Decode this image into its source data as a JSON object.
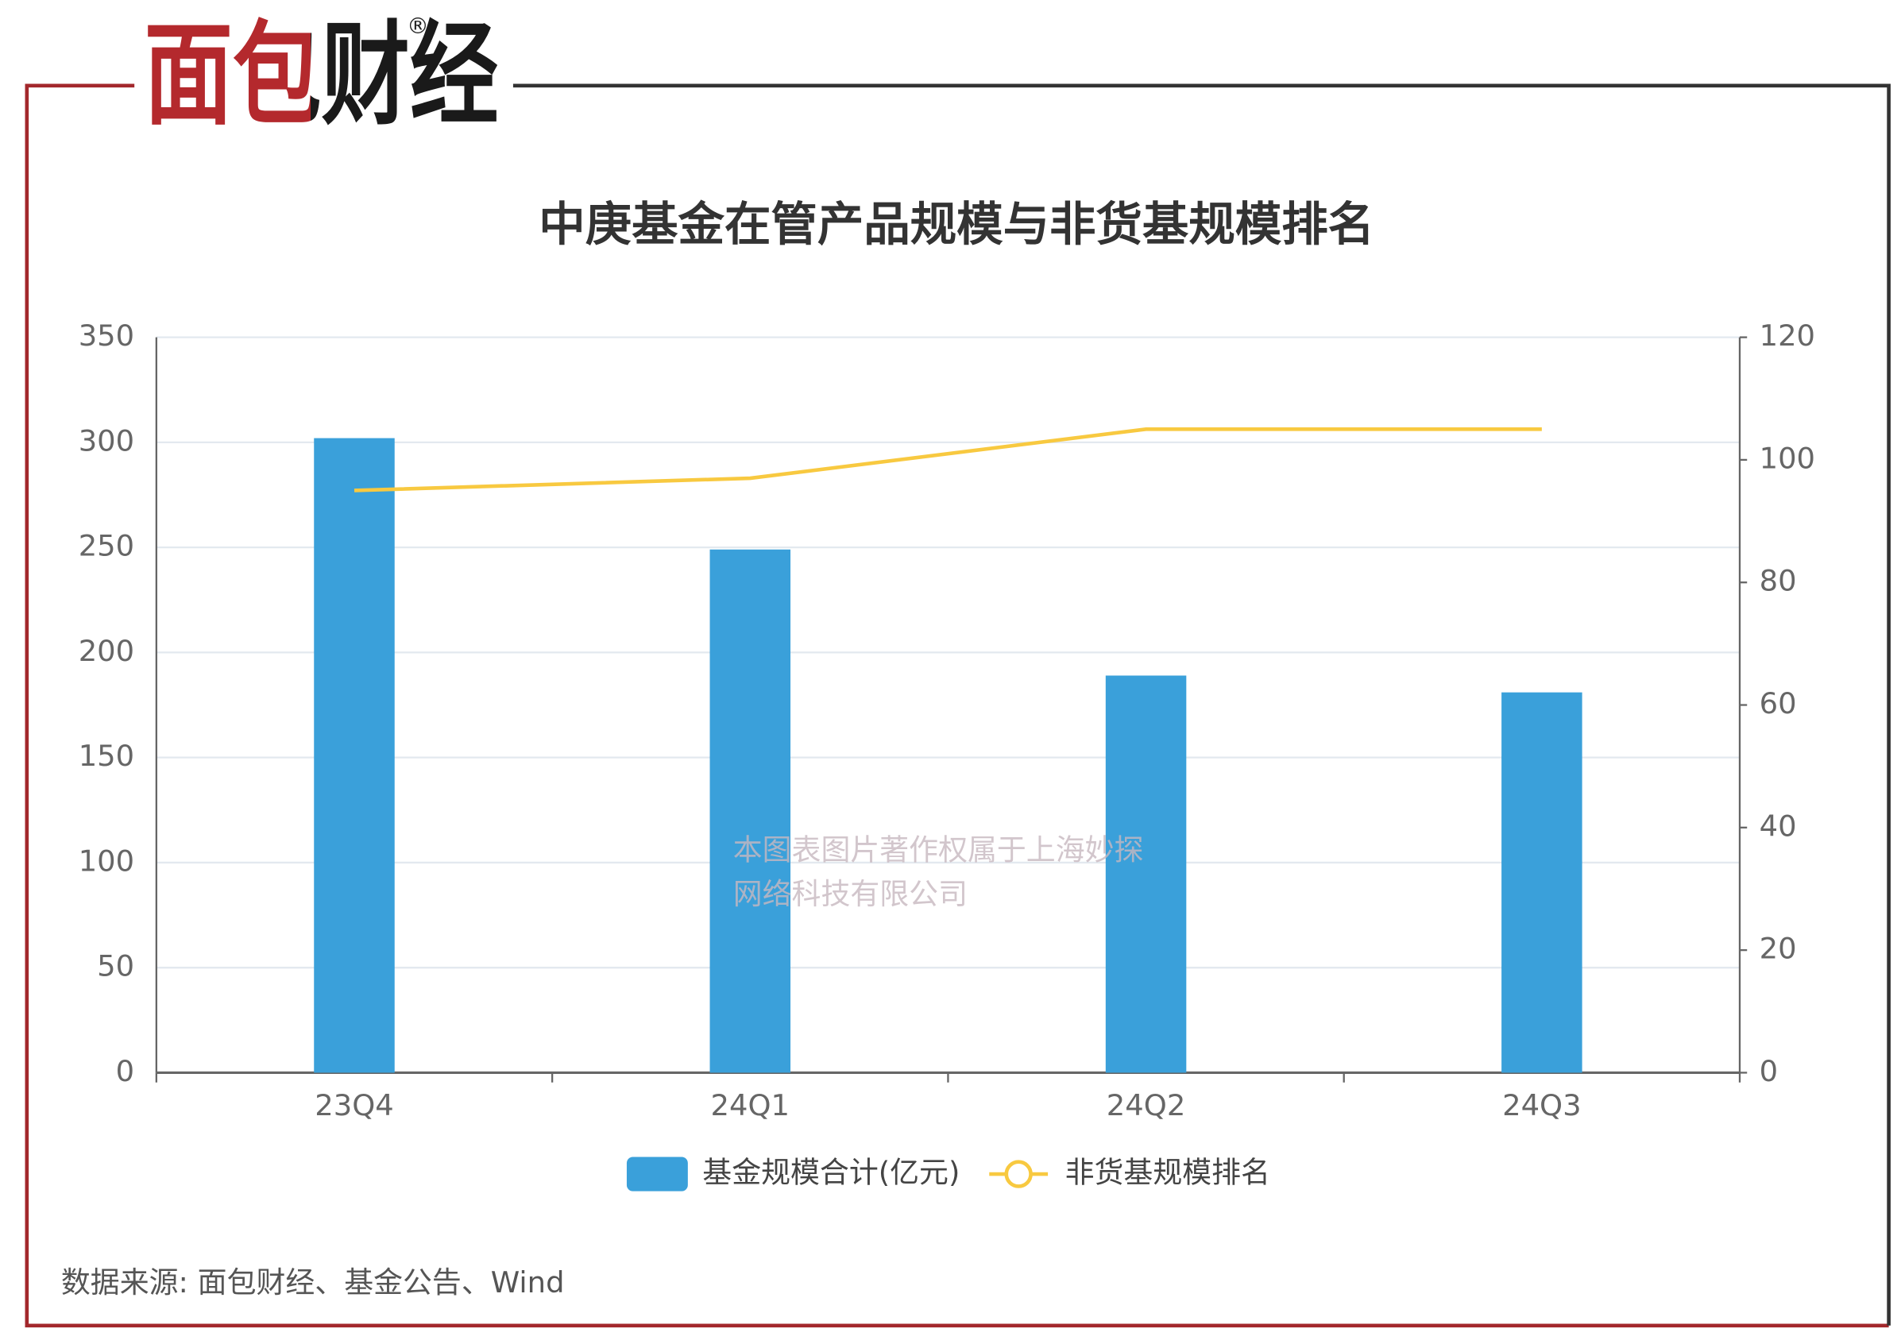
{
  "logo": {
    "text": "面包财经",
    "mark": "®"
  },
  "watermark": [
    "本图表图片著作权属于上海妙探",
    "网络科技有限公司"
  ],
  "source": "数据来源: 面包财经、基金公告、Wind",
  "chart_data": {
    "type": "bar",
    "title": "中庚基金在管产品规模与非货基规模排名",
    "categories": [
      "23Q4",
      "24Q1",
      "24Q2",
      "24Q3"
    ],
    "series": [
      {
        "name": "基金规模合计(亿元)",
        "color": "#3aa0da",
        "type": "bar",
        "values": [
          302,
          249,
          189,
          181
        ]
      },
      {
        "name": "非货基规模排名",
        "color": "#f8c940",
        "type": "line",
        "axis": "y2",
        "values": [
          95,
          97,
          105,
          105
        ]
      }
    ],
    "ylim": [
      0,
      350
    ],
    "yticks": [
      0,
      50,
      100,
      150,
      200,
      250,
      300,
      350
    ],
    "y2lim": [
      0,
      120
    ],
    "y2ticks": [
      0,
      20,
      40,
      60,
      80,
      100,
      120
    ],
    "grid": true,
    "legend": "bottom"
  }
}
